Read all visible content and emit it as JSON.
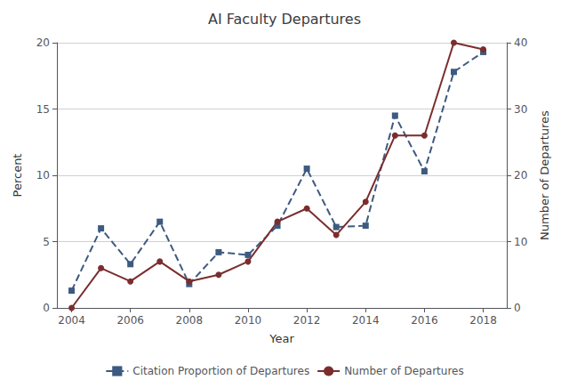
{
  "chart_data": {
    "type": "line",
    "title": "AI Faculty Departures",
    "xlabel": "Year",
    "ylabel": "Percent",
    "y2label": "Number of Departures",
    "x": [
      2004,
      2005,
      2006,
      2007,
      2008,
      2009,
      2010,
      2011,
      2012,
      2013,
      2014,
      2015,
      2016,
      2017,
      2018
    ],
    "series": [
      {
        "name": "Citation Proportion of Departures",
        "color": "#3d5a80",
        "marker": "square",
        "line_style": "dashed",
        "values": [
          1.3,
          6.0,
          3.3,
          6.5,
          1.8,
          4.2,
          4.0,
          6.2,
          10.5,
          6.1,
          6.2,
          14.5,
          10.3,
          17.8,
          19.3
        ]
      },
      {
        "name": "Number of Departures",
        "color": "#7b2d2d",
        "marker": "circle",
        "line_style": "solid",
        "axis": "y2",
        "values": [
          0,
          6,
          4,
          7,
          4,
          5,
          7,
          13,
          15,
          11,
          16,
          26,
          26,
          40,
          39
        ]
      }
    ],
    "xlim": [
      2003.5,
      2018.8
    ],
    "xticks": [
      2004,
      2006,
      2008,
      2010,
      2012,
      2014,
      2016,
      2018
    ],
    "ylim": [
      0,
      20
    ],
    "yticks": [
      0,
      5,
      10,
      15,
      20
    ],
    "y2lim": [
      0,
      40
    ],
    "y2ticks": [
      0,
      10,
      20,
      30,
      40
    ],
    "grid": true,
    "legend": "bottom"
  }
}
